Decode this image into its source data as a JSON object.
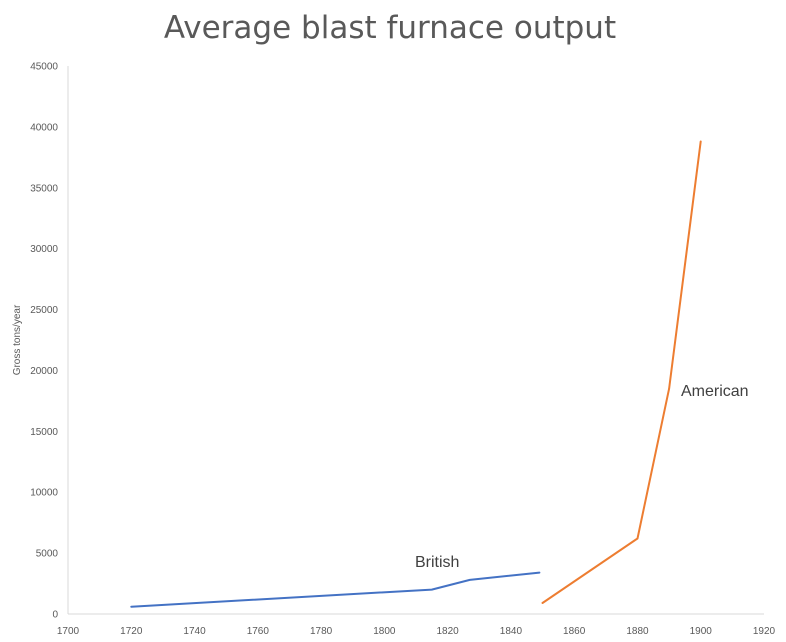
{
  "chart_data": {
    "type": "line",
    "title": "Average blast furnace output",
    "ylabel": "Gross tons/year",
    "xlabel": "",
    "xlim": [
      1700,
      1920
    ],
    "ylim": [
      0,
      45000
    ],
    "x_ticks": [
      1700,
      1720,
      1740,
      1760,
      1780,
      1800,
      1820,
      1840,
      1860,
      1880,
      1900,
      1920
    ],
    "y_ticks": [
      0,
      5000,
      10000,
      15000,
      20000,
      25000,
      30000,
      35000,
      40000,
      45000
    ],
    "grid": false,
    "legend": "none",
    "series": [
      {
        "name": "British",
        "color": "#4472c4",
        "x": [
          1720,
          1815,
          1827,
          1849
        ],
        "y": [
          600,
          2000,
          2800,
          3400
        ]
      },
      {
        "name": "American",
        "color": "#ed7d31",
        "x": [
          1850,
          1880,
          1890,
          1900
        ],
        "y": [
          900,
          6200,
          18500,
          38800
        ]
      }
    ]
  }
}
